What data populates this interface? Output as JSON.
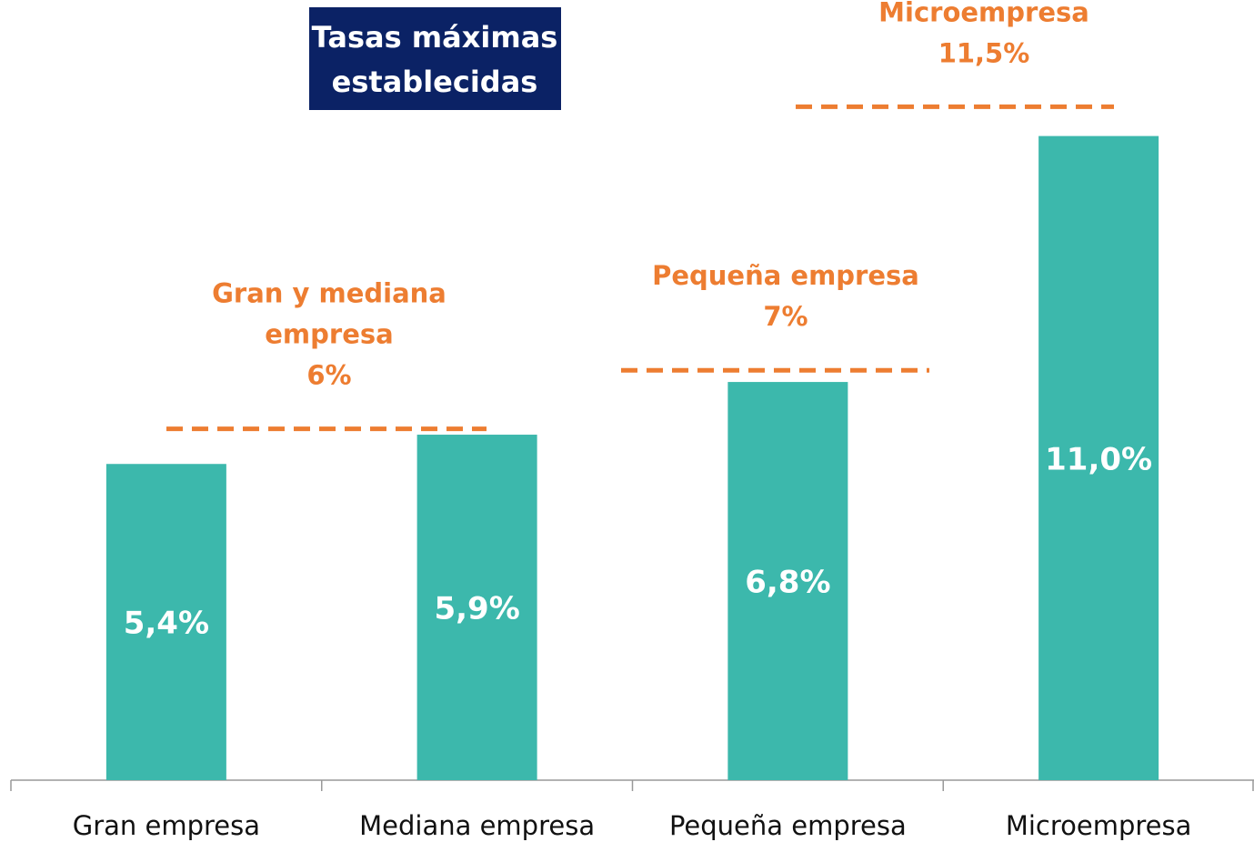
{
  "chart_data": {
    "type": "bar",
    "title": [
      "Tasas máximas",
      "establecidas"
    ],
    "categories": [
      "Gran empresa",
      "Mediana empresa",
      "Pequeña empresa",
      "Microempresa"
    ],
    "values": [
      5.4,
      5.9,
      6.8,
      11.0
    ],
    "value_labels": [
      "5,4%",
      "5,9%",
      "6,8%",
      "11,0%"
    ],
    "color": "#3cb8ac",
    "ylim": [
      0,
      13.3
    ],
    "thresholds": [
      {
        "label": [
          "Gran y mediana",
          "empresa"
        ],
        "value": 6,
        "value_label": "6%",
        "color": "#ed7d31"
      },
      {
        "label": [
          "Pequeña empresa"
        ],
        "value": 7,
        "value_label": "7%",
        "color": "#ed7d31"
      },
      {
        "label": [
          "Microempresa"
        ],
        "value": 11.5,
        "value_label": "11,5%",
        "color": "#ed7d31"
      }
    ]
  }
}
